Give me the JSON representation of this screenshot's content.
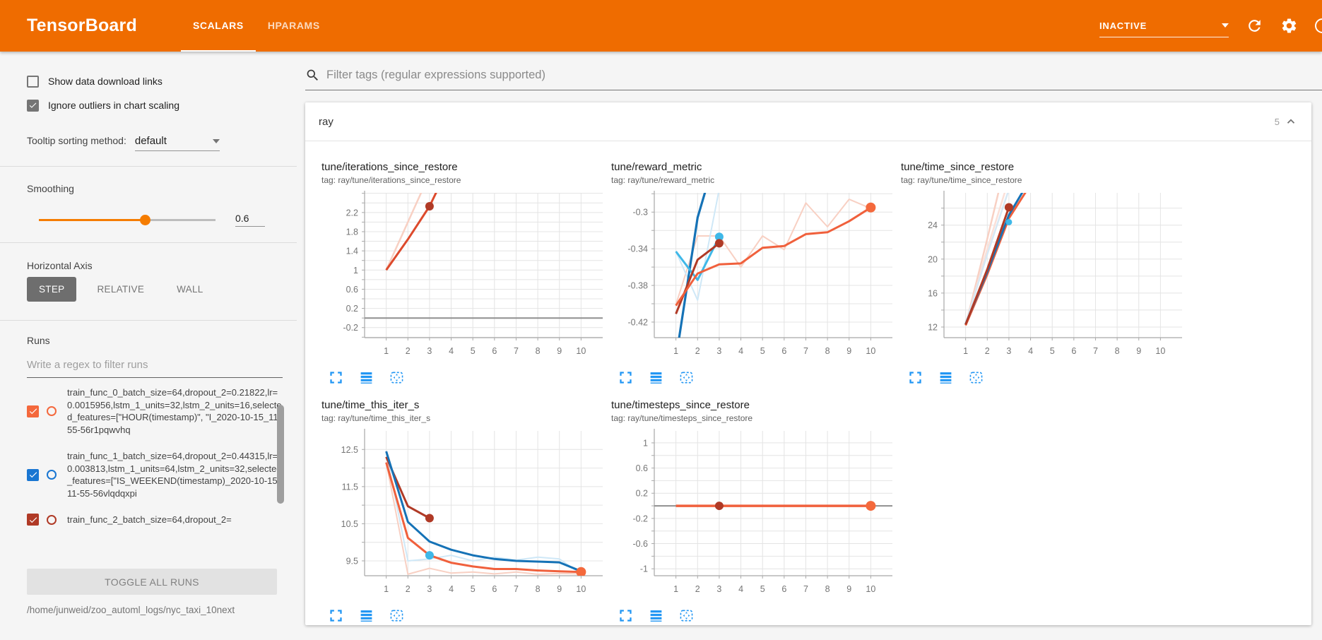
{
  "header": {
    "logo": "TensorBoard",
    "tabs": [
      {
        "label": "SCALARS",
        "active": true
      },
      {
        "label": "HPARAMS",
        "active": false
      }
    ],
    "status_dropdown": {
      "value": "INACTIVE"
    },
    "bg_color": "#ef6c00"
  },
  "sidebar": {
    "checkboxes": [
      {
        "label": "Show data download links",
        "checked": false
      },
      {
        "label": "Ignore outliers in chart scaling",
        "checked": true
      }
    ],
    "tooltip_sorting": {
      "label": "Tooltip sorting method:",
      "value": "default"
    },
    "smoothing": {
      "label": "Smoothing",
      "value": "0.6",
      "fraction": 0.6
    },
    "horizontal_axis": {
      "label": "Horizontal Axis",
      "options": [
        "STEP",
        "RELATIVE",
        "WALL"
      ],
      "selected": "STEP"
    },
    "runs": {
      "label": "Runs",
      "filter_placeholder": "Write a regex to filter runs",
      "items": [
        {
          "name": "train_func_0_batch_size=64,dropout_2=0.21822,lr=0.0015956,lstm_1_units=32,lstm_2_units=16,selected_features=[\"HOUR(timestamp)\", \"I_2020-10-15_11-55-56r1pqwvhq",
          "checked": true,
          "color": "#f4683c"
        },
        {
          "name": "train_func_1_batch_size=64,dropout_2=0.44315,lr=0.003813,lstm_1_units=64,lstm_2_units=32,selected_features=[\"IS_WEEKEND(timestamp)_2020-10-15_11-55-56vlqdqxpi",
          "checked": true,
          "color": "#1976d2"
        },
        {
          "name": "train_func_2_batch_size=64,dropout_2=",
          "checked": true,
          "color": "#b03a26"
        }
      ],
      "toggle_all_label": "TOGGLE ALL RUNS"
    },
    "log_path": "/home/junweid/zoo_automl_logs/nyc_taxi_10next"
  },
  "main": {
    "filter_placeholder": "Filter tags (regular expressions supported)",
    "section": {
      "name": "ray",
      "count": "5"
    }
  },
  "chart_actions": [
    "fullscreen-icon",
    "log-scale-icon",
    "fit-domain-icon"
  ],
  "chart_data": [
    {
      "type": "line",
      "title": "tune/iterations_since_restore",
      "tag": "tag: ray/tune/iterations_since_restore",
      "xlim": [
        0,
        11
      ],
      "x_ticks": [
        1,
        2,
        3,
        4,
        5,
        6,
        7,
        8,
        9,
        10
      ],
      "ylim": [
        -0.41,
        2.61
      ],
      "y_minor": 0.2,
      "y_ticks": [
        {
          "v": 2.2,
          "t": "2.2"
        },
        {
          "v": 1.8,
          "t": "1.8"
        },
        {
          "v": 1.4,
          "t": "1.4"
        },
        {
          "v": 1,
          "t": "1"
        },
        {
          "v": 0.6,
          "t": "0.6"
        },
        {
          "v": 0.2,
          "t": "0.2"
        },
        {
          "v": -0.2,
          "t": "-0.2"
        }
      ],
      "series": [
        {
          "name": "zero-baseline",
          "color": "#8f8f8f",
          "width": 2,
          "points": [
            [
              0,
              0
            ],
            [
              11,
              0
            ]
          ]
        },
        {
          "name": "run0-raw",
          "color": "#f8d0c3",
          "width": 2.5,
          "points": [
            [
              1,
              1
            ],
            [
              2,
              2
            ],
            [
              2.8,
              2.8
            ]
          ]
        },
        {
          "name": "run0-smoothed",
          "color": "#dd4a2c",
          "width": 3,
          "points": [
            [
              1,
              1
            ],
            [
              2,
              1.64
            ],
            [
              3,
              2.33
            ],
            [
              3.45,
              2.75
            ]
          ]
        }
      ],
      "dots": [
        {
          "x": 3,
          "y": 2.33,
          "color": "#b03a26",
          "r": 6
        }
      ]
    },
    {
      "type": "line",
      "title": "tune/reward_metric",
      "tag": "tag: ray/tune/reward_metric",
      "xlim": [
        0,
        11
      ],
      "x_ticks": [
        1,
        2,
        3,
        4,
        5,
        6,
        7,
        8,
        9,
        10
      ],
      "ylim": [
        -0.437,
        -0.279
      ],
      "y_minor": 0.02,
      "y_ticks": [
        {
          "v": -0.3,
          "t": "-0.3"
        },
        {
          "v": -0.34,
          "t": "-0.34"
        },
        {
          "v": -0.38,
          "t": "-0.38"
        },
        {
          "v": -0.42,
          "t": "-0.42"
        }
      ],
      "series": [
        {
          "name": "run0-raw",
          "color": "#f8d0c3",
          "width": 2,
          "points": [
            [
              1,
              -0.401
            ],
            [
              2,
              -0.326
            ],
            [
              3,
              -0.326
            ],
            [
              4,
              -0.36
            ],
            [
              5,
              -0.326
            ],
            [
              6,
              -0.341
            ],
            [
              7,
              -0.29
            ],
            [
              8,
              -0.316
            ],
            [
              9,
              -0.286
            ],
            [
              10,
              -0.296
            ]
          ]
        },
        {
          "name": "run3-raw",
          "color": "#cfe8f7",
          "width": 2,
          "points": [
            [
              1,
              -0.343
            ],
            [
              2,
              -0.396
            ],
            [
              3,
              -0.275
            ]
          ]
        },
        {
          "name": "run1-smoothed",
          "color": "#1572b6",
          "width": 3.2,
          "points": [
            [
              1.05,
              -0.452
            ],
            [
              2,
              -0.306
            ],
            [
              2.55,
              -0.262
            ]
          ]
        },
        {
          "name": "run3-smoothed",
          "color": "#3fb8e8",
          "width": 3,
          "points": [
            [
              1,
              -0.343
            ],
            [
              2,
              -0.374
            ],
            [
              3,
              -0.327
            ]
          ]
        },
        {
          "name": "run2-smoothed",
          "color": "#b03a26",
          "width": 3,
          "points": [
            [
              1,
              -0.411
            ],
            [
              2,
              -0.352
            ],
            [
              3,
              -0.334
            ]
          ]
        },
        {
          "name": "run0-smoothed",
          "color": "#f0603c",
          "width": 3,
          "points": [
            [
              1,
              -0.402
            ],
            [
              2,
              -0.367
            ],
            [
              3,
              -0.357
            ],
            [
              4,
              -0.356
            ],
            [
              5,
              -0.339
            ],
            [
              6,
              -0.337
            ],
            [
              7,
              -0.324
            ],
            [
              8,
              -0.322
            ],
            [
              9,
              -0.31
            ],
            [
              10,
              -0.295
            ]
          ]
        }
      ],
      "dots": [
        {
          "x": 3,
          "y": -0.327,
          "color": "#3fb8e8",
          "r": 6
        },
        {
          "x": 3,
          "y": -0.334,
          "color": "#b03a26",
          "r": 6
        },
        {
          "x": 10,
          "y": -0.295,
          "color": "#f4693c",
          "r": 7
        }
      ]
    },
    {
      "type": "line",
      "title": "tune/time_since_restore",
      "tag": "tag: ray/tune/time_since_restore",
      "xlim": [
        0,
        11
      ],
      "x_ticks": [
        1,
        2,
        3,
        4,
        5,
        6,
        7,
        8,
        9,
        10
      ],
      "ylim": [
        10.75,
        27.8
      ],
      "y_minor": 2,
      "y_ticks": [
        {
          "v": 24,
          "t": "24"
        },
        {
          "v": 20,
          "t": "20"
        },
        {
          "v": 16,
          "t": "16"
        },
        {
          "v": 12,
          "t": "12"
        }
      ],
      "series": [
        {
          "name": "run0-raw",
          "color": "#f8d0c3",
          "width": 2.5,
          "points": [
            [
              1,
              12.2
            ],
            [
              2,
              22.4
            ],
            [
              2.55,
              28.2
            ]
          ]
        },
        {
          "name": "run2-raw",
          "color": "#fbe0d8",
          "width": 2.5,
          "points": [
            [
              1,
              12.2
            ],
            [
              2,
              21.2
            ],
            [
              2.85,
              28.2
            ]
          ]
        },
        {
          "name": "run1-raw",
          "color": "#d7e8f4",
          "width": 2.5,
          "points": [
            [
              1,
              12.4
            ],
            [
              2,
              20.6
            ],
            [
              3,
              28.2
            ]
          ]
        },
        {
          "name": "run0-smoothed",
          "color": "#f0603c",
          "width": 3,
          "points": [
            [
              1,
              12.2
            ],
            [
              2,
              18.2
            ],
            [
              3,
              24.8
            ],
            [
              3.85,
              28.2
            ]
          ]
        },
        {
          "name": "run1-smoothed",
          "color": "#1572b6",
          "width": 3,
          "points": [
            [
              1,
              12.35
            ],
            [
              2,
              18.5
            ],
            [
              3,
              25.2
            ],
            [
              3.7,
              28.2
            ]
          ]
        },
        {
          "name": "run2-smoothed",
          "color": "#b03a26",
          "width": 3,
          "points": [
            [
              1,
              12.3
            ],
            [
              2,
              18.8
            ],
            [
              3,
              26.1
            ]
          ]
        }
      ],
      "dots": [
        {
          "x": 3,
          "y": 26.1,
          "color": "#b03a26",
          "r": 6
        },
        {
          "x": 3,
          "y": 24.35,
          "color": "#3fb8e8",
          "r": 4.5
        }
      ]
    },
    {
      "type": "line",
      "title": "tune/time_this_iter_s",
      "tag": "tag: ray/tune/time_this_iter_s",
      "xlim": [
        0,
        11
      ],
      "x_ticks": [
        1,
        2,
        3,
        4,
        5,
        6,
        7,
        8,
        9,
        10
      ],
      "ylim": [
        9.1,
        13.0
      ],
      "y_minor": 0.5,
      "y_ticks": [
        {
          "v": 12.5,
          "t": "12.5"
        },
        {
          "v": 11.5,
          "t": "11.5"
        },
        {
          "v": 10.5,
          "t": "10.5"
        },
        {
          "v": 9.5,
          "t": "9.5"
        }
      ],
      "series": [
        {
          "name": "run0-raw",
          "color": "#f8d0c3",
          "width": 2,
          "points": [
            [
              1,
              12.15
            ],
            [
              2,
              9.14
            ],
            [
              3,
              9.3
            ],
            [
              4,
              9.17
            ],
            [
              5,
              9.2
            ],
            [
              6,
              9.15
            ],
            [
              7,
              9.2
            ],
            [
              8,
              9.14
            ],
            [
              9,
              9.16
            ],
            [
              10,
              9.15
            ]
          ]
        },
        {
          "name": "run3-raw",
          "color": "#cfe8f7",
          "width": 2,
          "points": [
            [
              1,
              12.42
            ],
            [
              2,
              9.5
            ],
            [
              3,
              9.55
            ],
            [
              4,
              9.65
            ],
            [
              5,
              9.5
            ],
            [
              6,
              9.6
            ],
            [
              7,
              9.52
            ],
            [
              8,
              9.6
            ],
            [
              9,
              9.55
            ],
            [
              10,
              9.15
            ]
          ]
        },
        {
          "name": "run2-smoothed",
          "color": "#b03a26",
          "width": 3,
          "points": [
            [
              1,
              12.3
            ],
            [
              2,
              10.97
            ],
            [
              3,
              10.65
            ]
          ]
        },
        {
          "name": "run1-smoothed",
          "color": "#1572b6",
          "width": 3,
          "points": [
            [
              1,
              12.45
            ],
            [
              2,
              10.55
            ],
            [
              3,
              10.02
            ],
            [
              4,
              9.8
            ],
            [
              5,
              9.65
            ],
            [
              6,
              9.55
            ],
            [
              7,
              9.5
            ],
            [
              8,
              9.48
            ],
            [
              9,
              9.46
            ],
            [
              10,
              9.22
            ]
          ]
        },
        {
          "name": "run0-smoothed",
          "color": "#f0603c",
          "width": 3,
          "points": [
            [
              1,
              12.15
            ],
            [
              2,
              10.12
            ],
            [
              3,
              9.65
            ],
            [
              4,
              9.45
            ],
            [
              5,
              9.35
            ],
            [
              6,
              9.28
            ],
            [
              7,
              9.28
            ],
            [
              8,
              9.24
            ],
            [
              9,
              9.22
            ],
            [
              10,
              9.2
            ]
          ]
        }
      ],
      "dots": [
        {
          "x": 3,
          "y": 10.65,
          "color": "#b03a26",
          "r": 6
        },
        {
          "x": 3,
          "y": 9.65,
          "color": "#3fb8e8",
          "r": 6
        },
        {
          "x": 10,
          "y": 9.2,
          "color": "#f4693c",
          "r": 7
        }
      ]
    },
    {
      "type": "line",
      "title": "tune/timesteps_since_restore",
      "tag": "tag: ray/tune/timesteps_since_restore",
      "xlim": [
        0,
        11
      ],
      "x_ticks": [
        1,
        2,
        3,
        4,
        5,
        6,
        7,
        8,
        9,
        10
      ],
      "ylim": [
        -1.11,
        1.19
      ],
      "y_minor": 0.2,
      "y_ticks": [
        {
          "v": 1,
          "t": "1"
        },
        {
          "v": 0.6,
          "t": "0.6"
        },
        {
          "v": 0.2,
          "t": "0.2"
        },
        {
          "v": -0.2,
          "t": "-0.2"
        },
        {
          "v": -0.6,
          "t": "-0.6"
        },
        {
          "v": -1,
          "t": "-1"
        }
      ],
      "series": [
        {
          "name": "zero-baseline",
          "color": "#8f8f8f",
          "width": 2,
          "points": [
            [
              0,
              0
            ],
            [
              11,
              0
            ]
          ]
        },
        {
          "name": "run0-smoothed",
          "color": "#f0603c",
          "width": 3.5,
          "points": [
            [
              1,
              0
            ],
            [
              10,
              0
            ]
          ]
        }
      ],
      "dots": [
        {
          "x": 3,
          "y": 0,
          "color": "#b03a26",
          "r": 6
        },
        {
          "x": 10,
          "y": 0,
          "color": "#f4693c",
          "r": 7
        }
      ]
    }
  ]
}
